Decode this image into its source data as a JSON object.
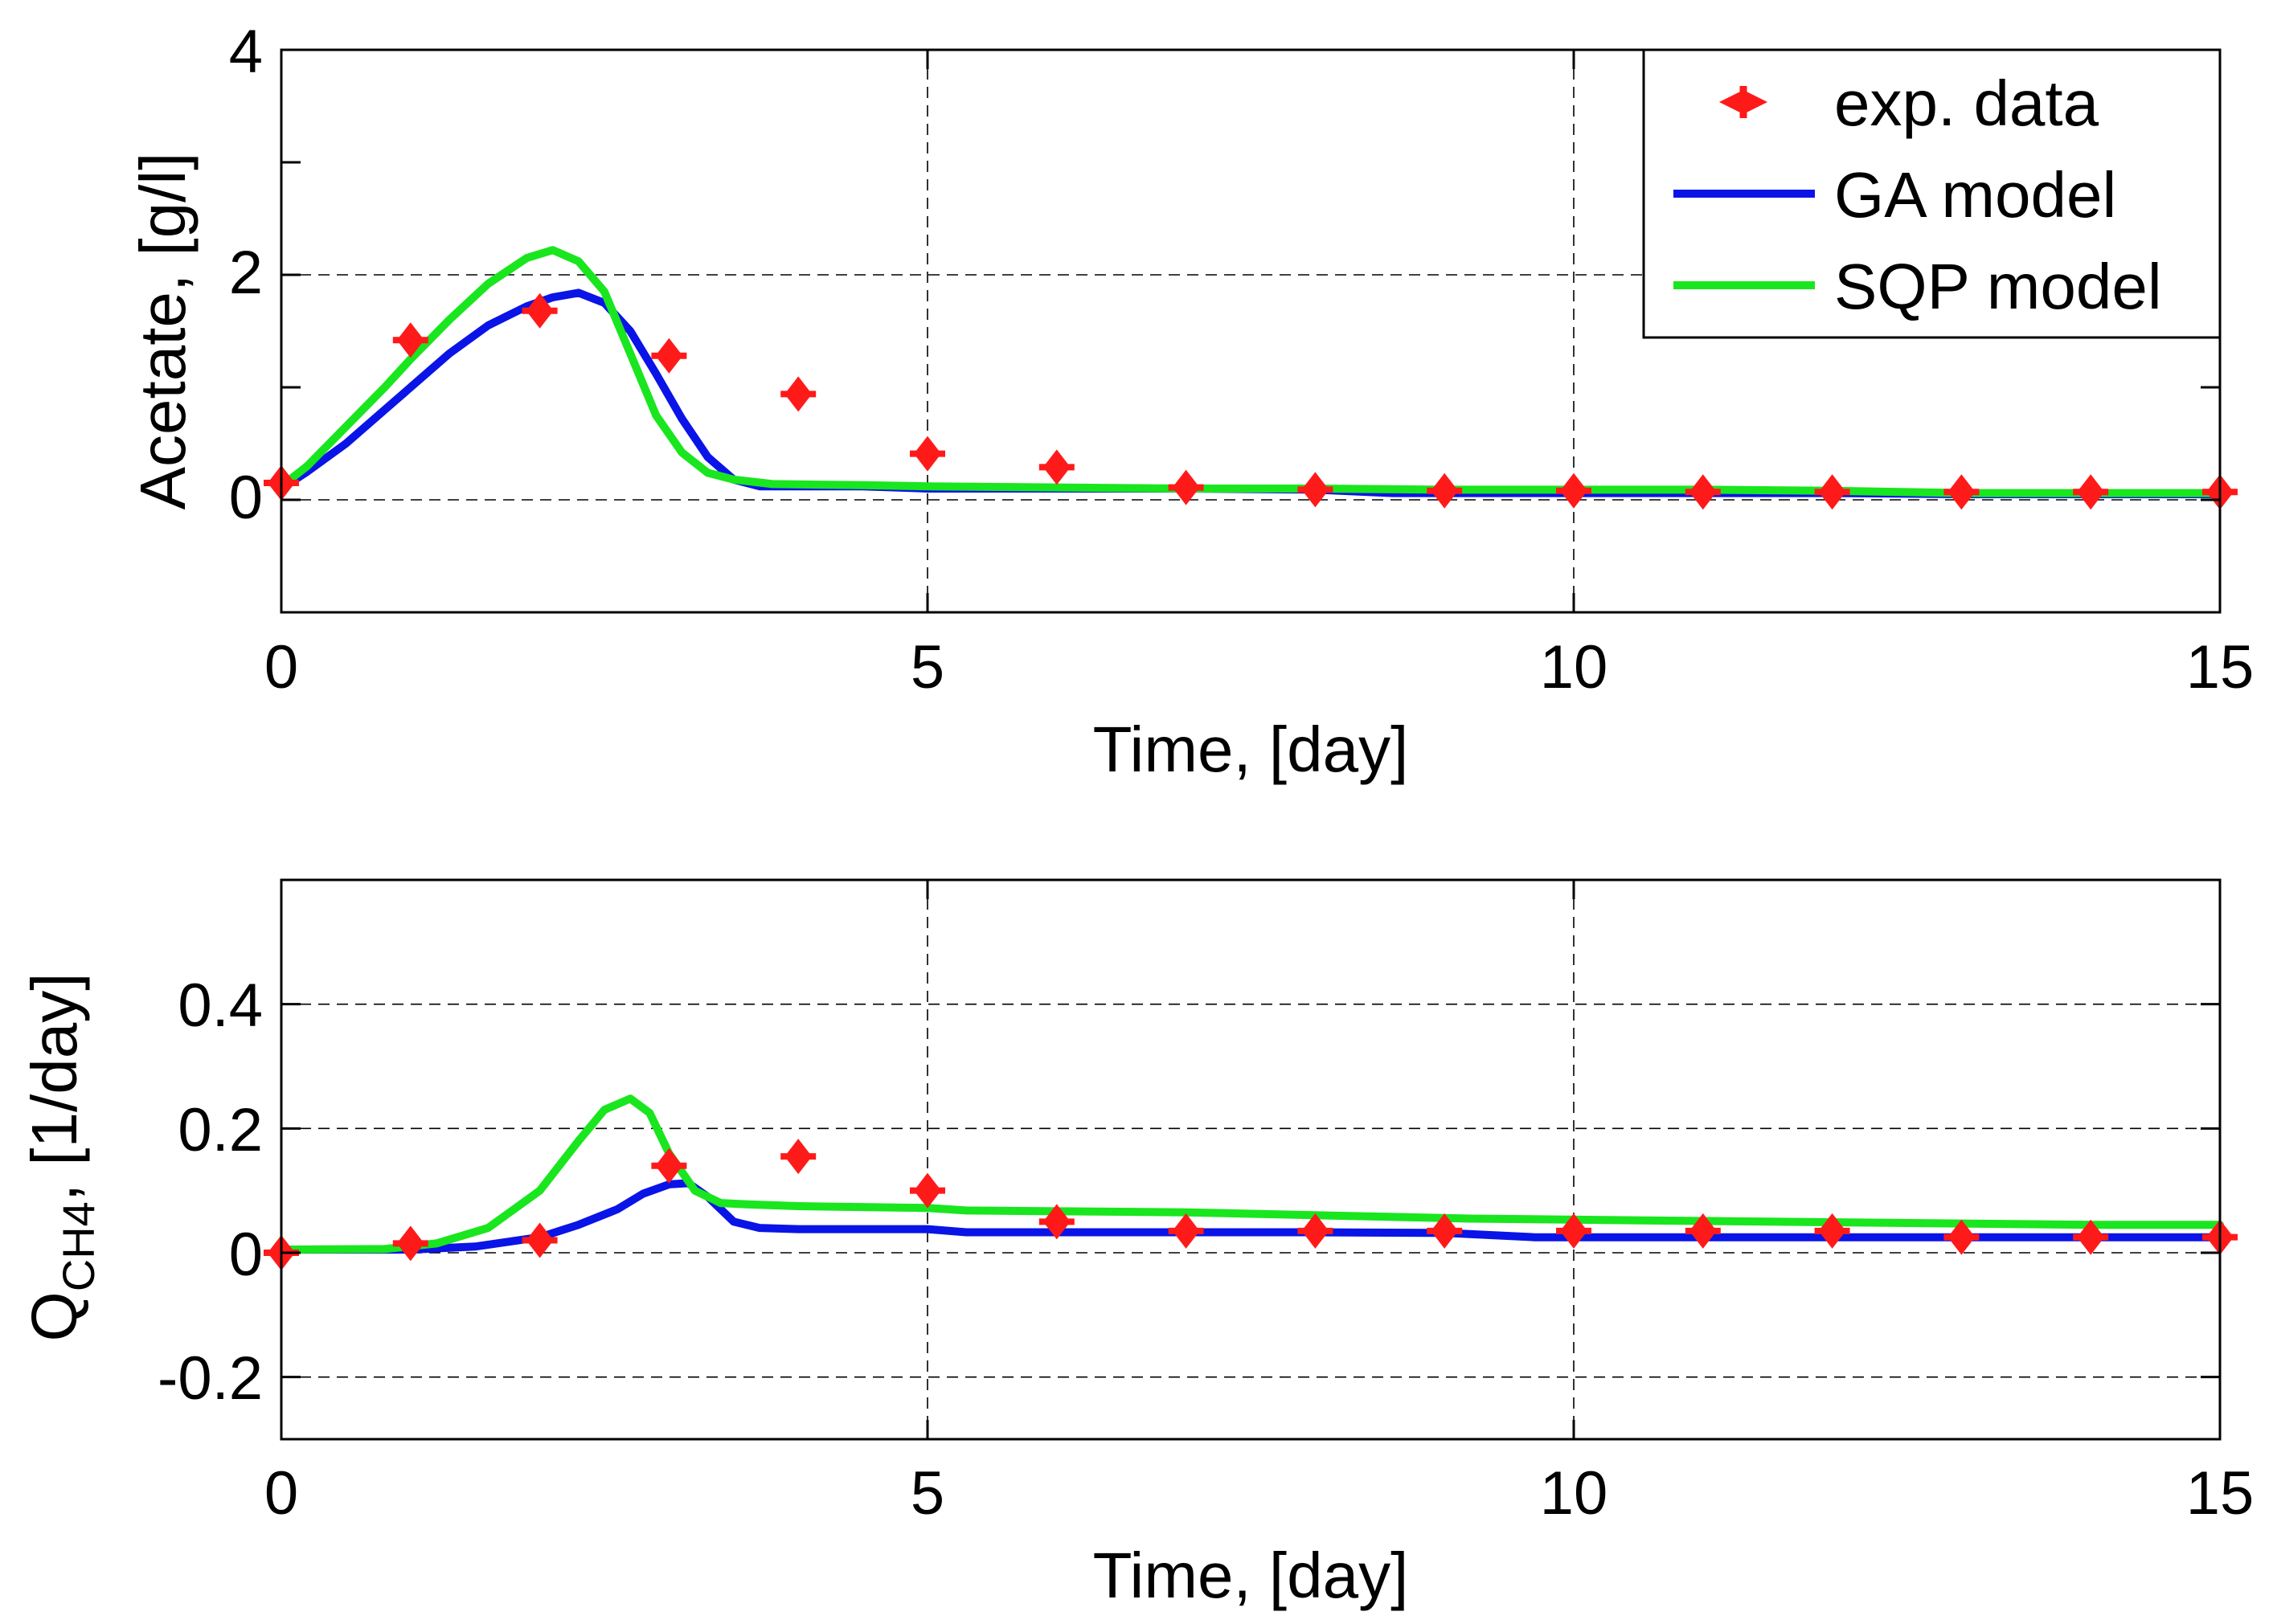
{
  "chart_data": [
    {
      "type": "line",
      "xlabel": "Time, [day]",
      "ylabel": "Acetate, [g/l]",
      "xlim": [
        0,
        15
      ],
      "ylim": [
        -1,
        4
      ],
      "xticks": [
        "0",
        "5",
        "10",
        "15"
      ],
      "yticks": [
        "0",
        "2",
        "4"
      ],
      "grid": true,
      "legend": {
        "position": "top-right",
        "entries": [
          "exp. data",
          "GA model",
          "SQP model"
        ]
      },
      "colors": {
        "exp": "#ff1a1a",
        "ga": "#0a14e6",
        "sqp": "#19e61e"
      },
      "series": [
        {
          "name": "exp. data",
          "style": "markers",
          "x": [
            0,
            1,
            2,
            3,
            4,
            5,
            6,
            7,
            8,
            9,
            10,
            11,
            12,
            13,
            14,
            15
          ],
          "y": [
            0.15,
            1.42,
            1.68,
            1.28,
            0.94,
            0.41,
            0.29,
            0.11,
            0.09,
            0.08,
            0.08,
            0.07,
            0.07,
            0.07,
            0.07,
            0.07
          ]
        },
        {
          "name": "GA model",
          "style": "line",
          "x": [
            0,
            0.2,
            0.5,
            0.8,
            1.0,
            1.3,
            1.6,
            1.9,
            2.1,
            2.3,
            2.5,
            2.7,
            2.9,
            3.1,
            3.3,
            3.5,
            3.7,
            4.0,
            4.5,
            5.0,
            6.0,
            7.0,
            8.0,
            8.6,
            10.0,
            11.0,
            12.0,
            13.0,
            14.0,
            15.0
          ],
          "y": [
            0.1,
            0.25,
            0.5,
            0.8,
            1.0,
            1.3,
            1.55,
            1.72,
            1.8,
            1.84,
            1.75,
            1.5,
            1.12,
            0.72,
            0.38,
            0.18,
            0.12,
            0.12,
            0.12,
            0.1,
            0.1,
            0.1,
            0.09,
            0.06,
            0.06,
            0.06,
            0.06,
            0.05,
            0.05,
            0.05
          ]
        },
        {
          "name": "SQP model",
          "style": "line",
          "x": [
            0,
            0.2,
            0.5,
            0.8,
            1.0,
            1.3,
            1.6,
            1.9,
            2.1,
            2.3,
            2.5,
            2.7,
            2.9,
            3.1,
            3.3,
            3.5,
            3.8,
            4.5,
            5.0,
            6.0,
            7.0,
            8.0,
            9.0,
            10.0,
            11.0,
            12.0,
            13.0,
            14.0,
            15.0
          ],
          "y": [
            0.12,
            0.3,
            0.65,
            1.0,
            1.25,
            1.6,
            1.92,
            2.15,
            2.22,
            2.12,
            1.85,
            1.3,
            0.75,
            0.42,
            0.24,
            0.18,
            0.14,
            0.13,
            0.12,
            0.11,
            0.1,
            0.1,
            0.09,
            0.09,
            0.09,
            0.08,
            0.06,
            0.06,
            0.06
          ]
        }
      ]
    },
    {
      "type": "line",
      "xlabel": "Time, [day]",
      "ylabel": "Q",
      "ylabel_subscript": "CH4",
      "ylabel_suffix": ", [1/day]",
      "xlim": [
        0,
        15
      ],
      "ylim": [
        -0.3,
        0.6
      ],
      "xticks": [
        "0",
        "5",
        "10",
        "15"
      ],
      "yticks": [
        "-0.2",
        "0",
        "0.2",
        "0.4"
      ],
      "grid": true,
      "colors": {
        "exp": "#ff1a1a",
        "ga": "#0a14e6",
        "sqp": "#19e61e"
      },
      "series": [
        {
          "name": "exp. data",
          "style": "markers",
          "x": [
            0,
            1,
            2,
            3,
            4,
            5,
            6,
            7,
            8,
            9,
            10,
            11,
            12,
            13,
            14,
            15
          ],
          "y": [
            0.0,
            0.015,
            0.02,
            0.14,
            0.155,
            0.1,
            0.05,
            0.035,
            0.035,
            0.035,
            0.035,
            0.035,
            0.035,
            0.025,
            0.025,
            0.025
          ]
        },
        {
          "name": "GA model",
          "style": "line",
          "x": [
            0,
            1.0,
            1.5,
            2.0,
            2.3,
            2.6,
            2.8,
            3.0,
            3.15,
            3.3,
            3.5,
            3.7,
            4.0,
            5.0,
            5.3,
            6.0,
            7.0,
            8.0,
            9.0,
            9.7,
            10.0,
            11.0,
            12.0,
            13.0,
            14.0,
            15.0
          ],
          "y": [
            0.005,
            0.005,
            0.01,
            0.025,
            0.045,
            0.07,
            0.095,
            0.11,
            0.112,
            0.09,
            0.05,
            0.04,
            0.038,
            0.038,
            0.033,
            0.033,
            0.033,
            0.033,
            0.032,
            0.025,
            0.025,
            0.025,
            0.025,
            0.025,
            0.025,
            0.025
          ]
        },
        {
          "name": "SQP model",
          "style": "line",
          "x": [
            0,
            0.8,
            1.2,
            1.6,
            2.0,
            2.3,
            2.5,
            2.7,
            2.85,
            3.0,
            3.2,
            3.4,
            3.6,
            4.0,
            5.0,
            5.3,
            7.0,
            9.2,
            11.5,
            14.0,
            15.0
          ],
          "y": [
            0.005,
            0.006,
            0.015,
            0.04,
            0.1,
            0.18,
            0.23,
            0.248,
            0.225,
            0.16,
            0.1,
            0.08,
            0.078,
            0.075,
            0.072,
            0.068,
            0.065,
            0.055,
            0.05,
            0.045,
            0.045
          ]
        }
      ]
    }
  ]
}
